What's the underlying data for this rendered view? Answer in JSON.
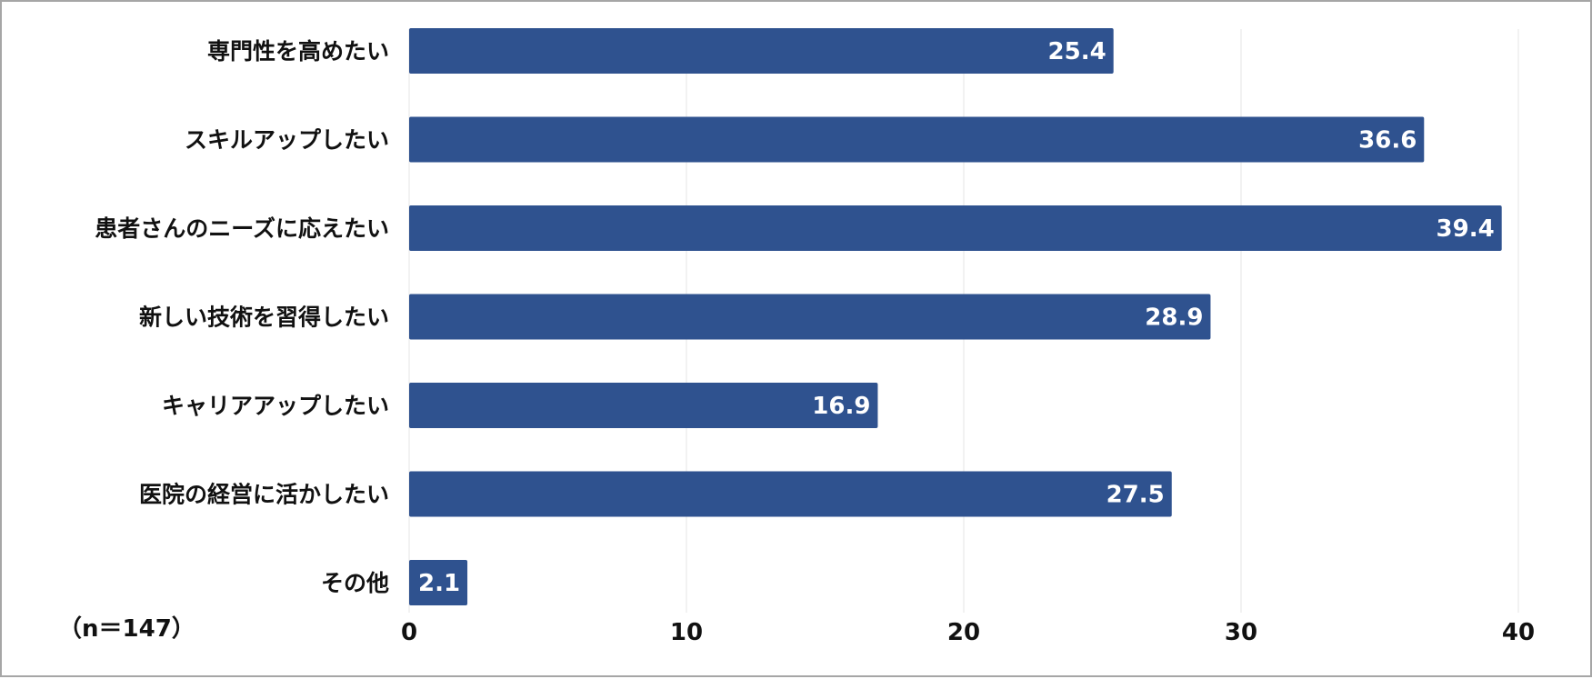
{
  "chart_data": {
    "type": "bar",
    "orientation": "horizontal",
    "categories": [
      "専門性を高めたい",
      "スキルアップしたい",
      "患者さんのニーズに応えたい",
      "新しい技術を習得したい",
      "キャリアアップしたい",
      "医院の経営に活かしたい",
      "その他"
    ],
    "values": [
      25.4,
      36.6,
      39.4,
      28.9,
      16.9,
      27.5,
      2.1
    ],
    "value_labels": [
      "25.4",
      "36.6",
      "39.4",
      "28.9",
      "16.9",
      "27.5",
      "2.1"
    ],
    "x_ticks": [
      "0",
      "10",
      "20",
      "30",
      "40"
    ],
    "xlim": [
      0,
      40
    ],
    "grid": true,
    "sample_note": "（n＝147）",
    "colors": {
      "bar": "#2f528f",
      "grid": "#e6e6e6",
      "text": "#111111",
      "value_text": "#ffffff",
      "frame": "#a6a6a6"
    }
  }
}
